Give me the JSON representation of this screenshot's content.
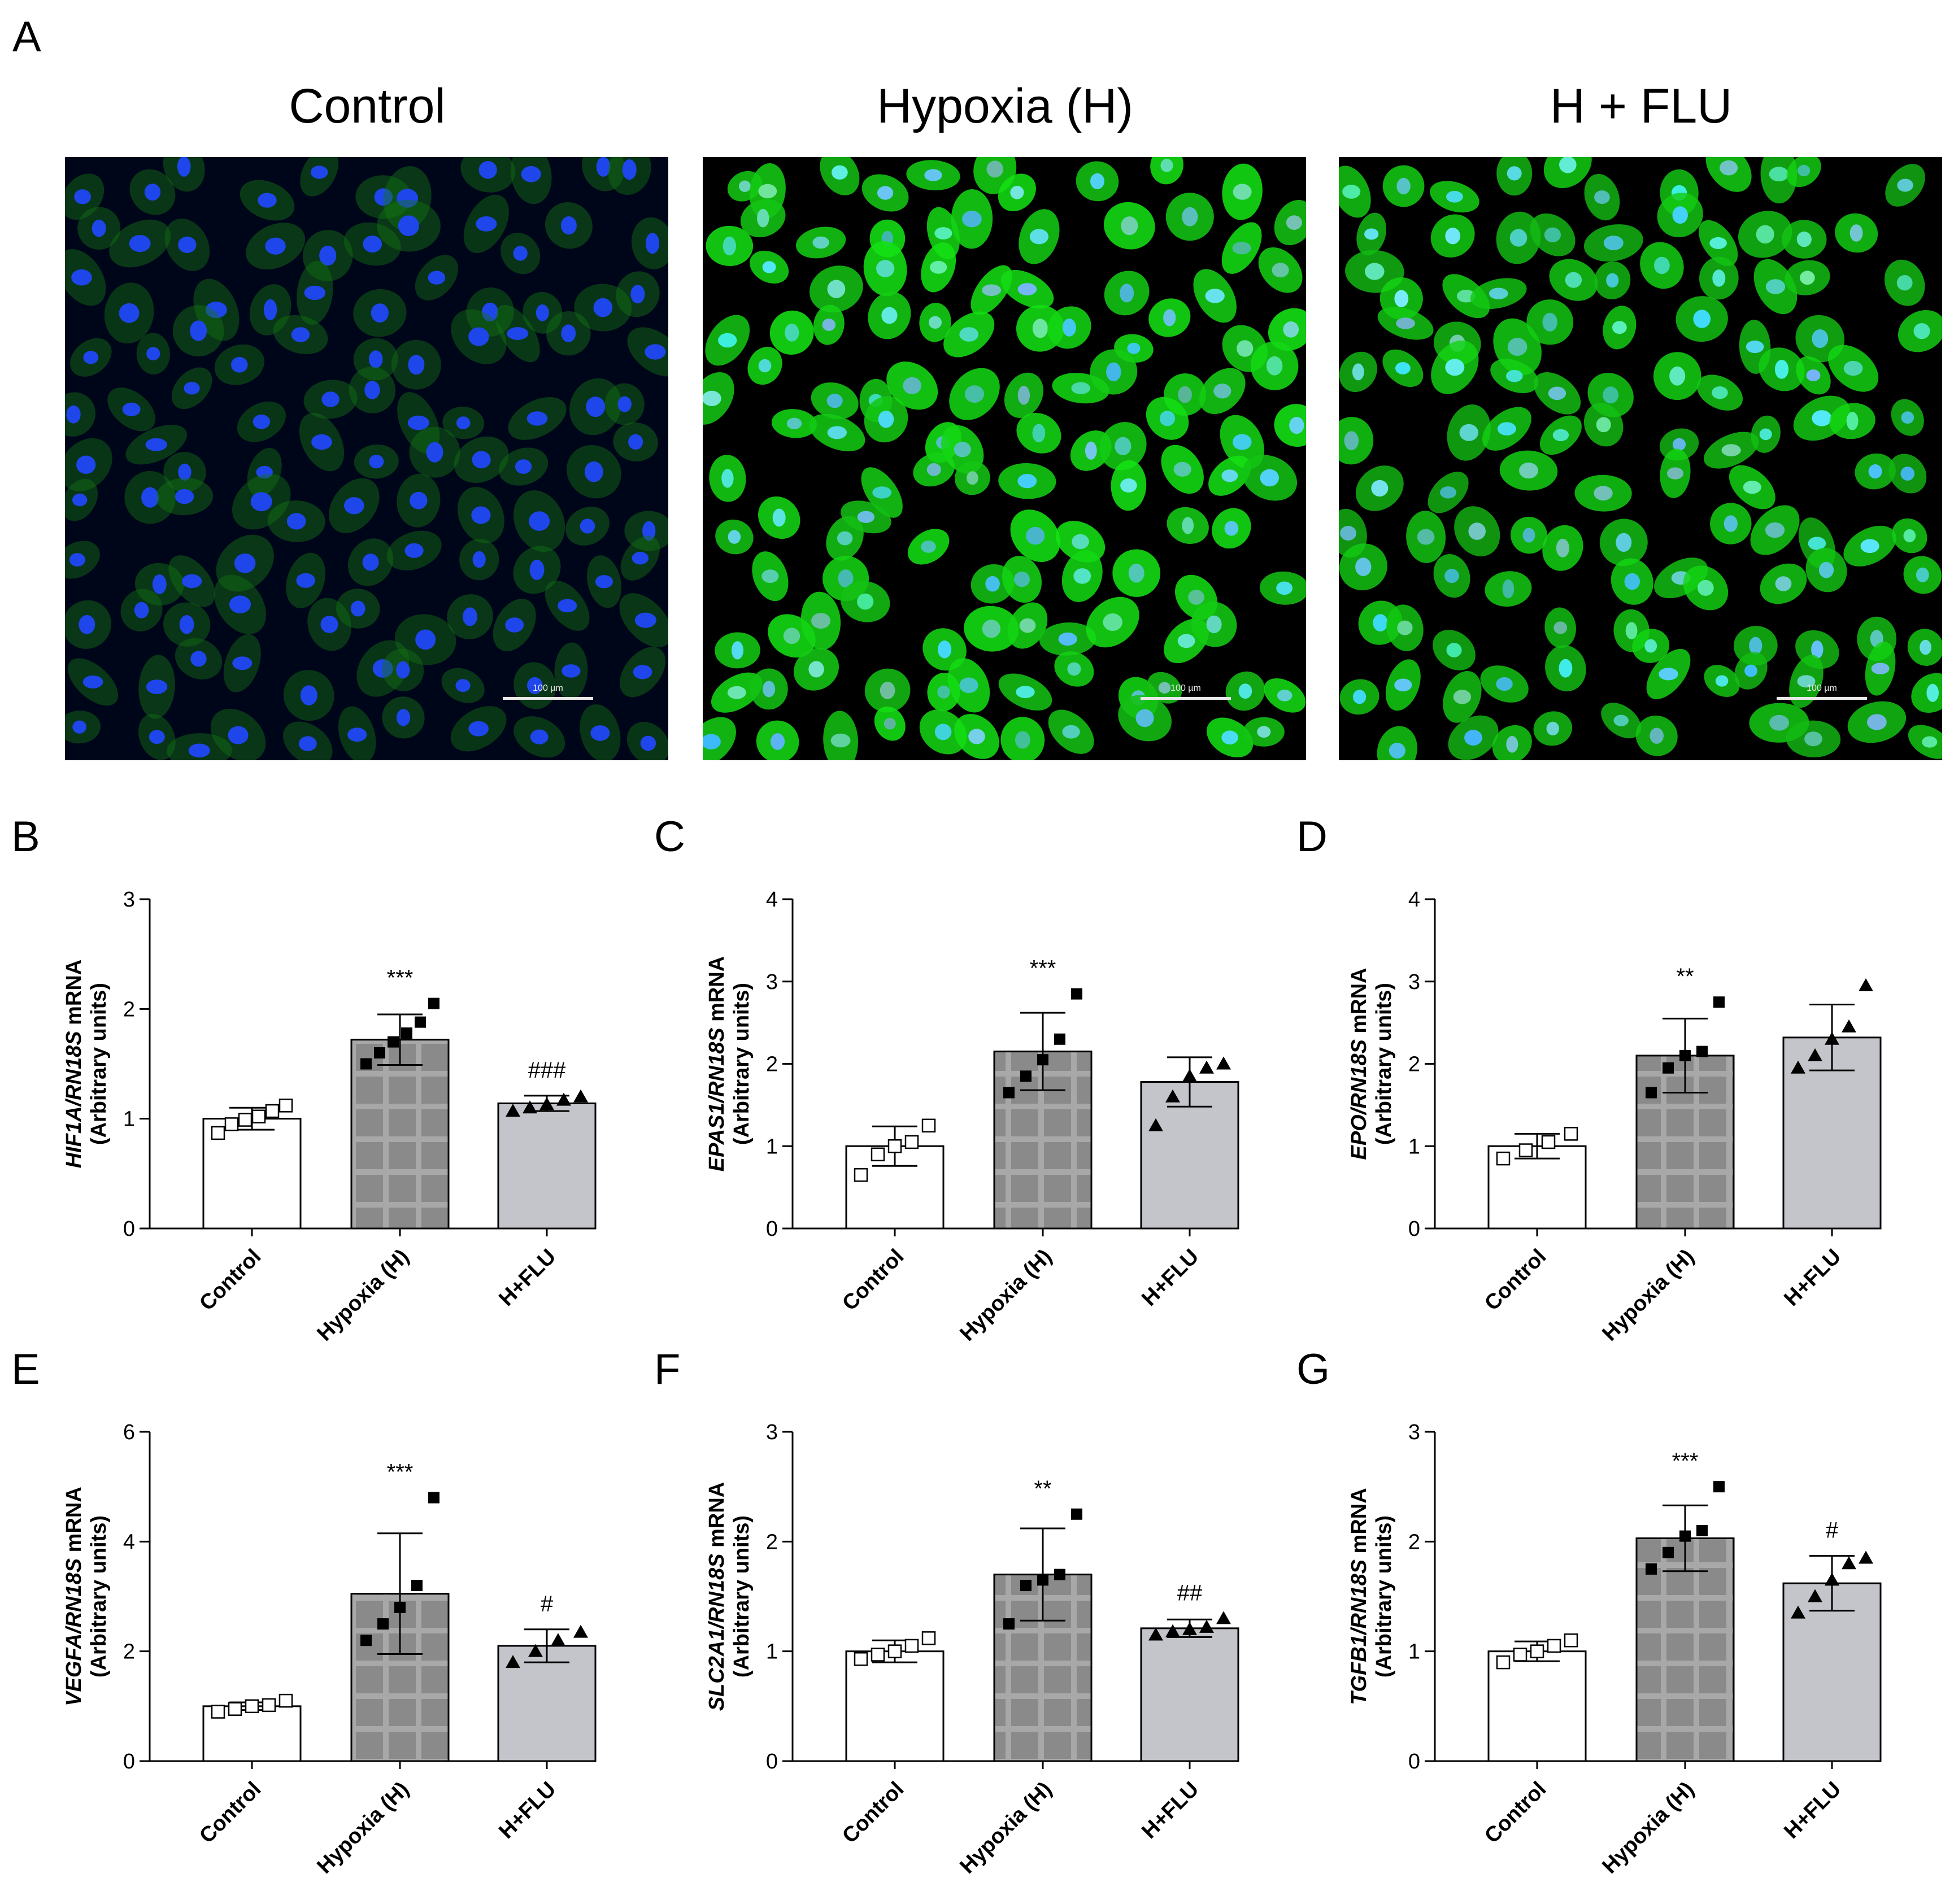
{
  "panel_a": {
    "letter": "A",
    "images": [
      {
        "title": "Control",
        "scale_label": "100 µm",
        "green_intensity": 0.18,
        "background": "#00061a"
      },
      {
        "title": "Hypoxia (H)",
        "scale_label": "100 µm",
        "green_intensity": 0.95,
        "background": "#000000"
      },
      {
        "title": "H + FLU",
        "scale_label": "100 µm",
        "green_intensity": 0.85,
        "background": "#000000"
      }
    ]
  },
  "colors": {
    "control_bar": "#ffffff",
    "hypoxia_bar": "#8a8a8a",
    "hypoxia_grid": "#a8a8a8",
    "flu_bar": "#c4c5cb",
    "nuclei": "#1a4cff",
    "cytoplasm": "#22d61e"
  },
  "chart_data": [
    {
      "letter": "B",
      "type": "bar",
      "ylabel_gene": "HIF1A/RN18S",
      "ylabel_suffix": " mRNA",
      "ylabel_units": "(Arbitrary units)",
      "ylim": [
        0,
        3
      ],
      "yticks": [
        "0",
        "1",
        "2",
        "3"
      ],
      "categories": [
        "Control",
        "Hypoxia (H)",
        "H+FLU"
      ],
      "values": [
        1.0,
        1.72,
        1.14
      ],
      "sd": [
        0.1,
        0.23,
        0.07
      ],
      "points": [
        [
          0.87,
          0.95,
          0.99,
          1.02,
          1.07,
          1.12
        ],
        [
          1.5,
          1.6,
          1.7,
          1.78,
          1.88,
          2.05
        ],
        [
          1.07,
          1.1,
          1.13,
          1.17,
          1.2
        ]
      ],
      "annotations": [
        "",
        "***",
        "###"
      ]
    },
    {
      "letter": "C",
      "type": "bar",
      "ylabel_gene": "EPAS1/RN18S",
      "ylabel_suffix": " mRNA",
      "ylabel_units": "(Arbitrary units)",
      "ylim": [
        0,
        4
      ],
      "yticks": [
        "0",
        "1",
        "2",
        "3",
        "4"
      ],
      "categories": [
        "Control",
        "Hypoxia (H)",
        "H+FLU"
      ],
      "values": [
        1.0,
        2.15,
        1.78
      ],
      "sd": [
        0.24,
        0.47,
        0.3
      ],
      "points": [
        [
          0.65,
          0.9,
          1.0,
          1.05,
          1.25
        ],
        [
          1.65,
          1.85,
          2.05,
          2.3,
          2.85
        ],
        [
          1.25,
          1.6,
          1.85,
          1.95,
          2.0
        ]
      ],
      "annotations": [
        "",
        "***",
        ""
      ]
    },
    {
      "letter": "D",
      "type": "bar",
      "ylabel_gene": "EPO/RN18S",
      "ylabel_suffix": " mRNA",
      "ylabel_units": "(Arbitrary units)",
      "ylim": [
        0,
        4
      ],
      "yticks": [
        "0",
        "1",
        "2",
        "3",
        "4"
      ],
      "categories": [
        "Control",
        "Hypoxia (H)",
        "H+FLU"
      ],
      "values": [
        1.0,
        2.1,
        2.32
      ],
      "sd": [
        0.15,
        0.45,
        0.4
      ],
      "points": [
        [
          0.85,
          0.95,
          1.05,
          1.15
        ],
        [
          1.65,
          1.95,
          2.1,
          2.15,
          2.75
        ],
        [
          1.95,
          2.1,
          2.3,
          2.45,
          2.95
        ]
      ],
      "annotations": [
        "",
        "**",
        ""
      ]
    },
    {
      "letter": "E",
      "type": "bar",
      "ylabel_gene": "VEGFA/RN18S",
      "ylabel_suffix": " mRNA",
      "ylabel_units": "(Arbitrary units)",
      "ylim": [
        0,
        6
      ],
      "yticks": [
        "0",
        "2",
        "4",
        "6"
      ],
      "categories": [
        "Control",
        "Hypoxia (H)",
        "H+FLU"
      ],
      "values": [
        1.0,
        3.05,
        2.1
      ],
      "sd": [
        0.07,
        1.1,
        0.3
      ],
      "points": [
        [
          0.9,
          0.95,
          1.0,
          1.02,
          1.1
        ],
        [
          2.2,
          2.5,
          2.8,
          3.2,
          4.8
        ],
        [
          1.8,
          2.0,
          2.2,
          2.35
        ]
      ],
      "annotations": [
        "",
        "***",
        "#"
      ]
    },
    {
      "letter": "F",
      "type": "bar",
      "ylabel_gene": "SLC2A1/RN18S",
      "ylabel_suffix": " mRNA",
      "ylabel_units": "(Arbitrary units)",
      "ylim": [
        0,
        3
      ],
      "yticks": [
        "0",
        "1",
        "2",
        "3"
      ],
      "categories": [
        "Control",
        "Hypoxia (H)",
        "H+FLU"
      ],
      "values": [
        1.0,
        1.7,
        1.21
      ],
      "sd": [
        0.1,
        0.42,
        0.08
      ],
      "points": [
        [
          0.93,
          0.97,
          1.0,
          1.05,
          1.12
        ],
        [
          1.25,
          1.6,
          1.65,
          1.7,
          2.25
        ],
        [
          1.15,
          1.18,
          1.2,
          1.22,
          1.3
        ]
      ],
      "annotations": [
        "",
        "**",
        "##"
      ]
    },
    {
      "letter": "G",
      "type": "bar",
      "ylabel_gene": "TGFB1/RN18S",
      "ylabel_suffix": " mRNA",
      "ylabel_units": "(Arbitrary units)",
      "ylim": [
        0,
        3
      ],
      "yticks": [
        "0",
        "1",
        "2",
        "3"
      ],
      "categories": [
        "Control",
        "Hypoxia (H)",
        "H+FLU"
      ],
      "values": [
        1.0,
        2.03,
        1.62
      ],
      "sd": [
        0.09,
        0.3,
        0.25
      ],
      "points": [
        [
          0.9,
          0.97,
          1.0,
          1.05,
          1.1
        ],
        [
          1.75,
          1.9,
          2.05,
          2.1,
          2.5
        ],
        [
          1.35,
          1.5,
          1.65,
          1.8,
          1.85
        ]
      ],
      "annotations": [
        "",
        "***",
        "#"
      ]
    }
  ]
}
